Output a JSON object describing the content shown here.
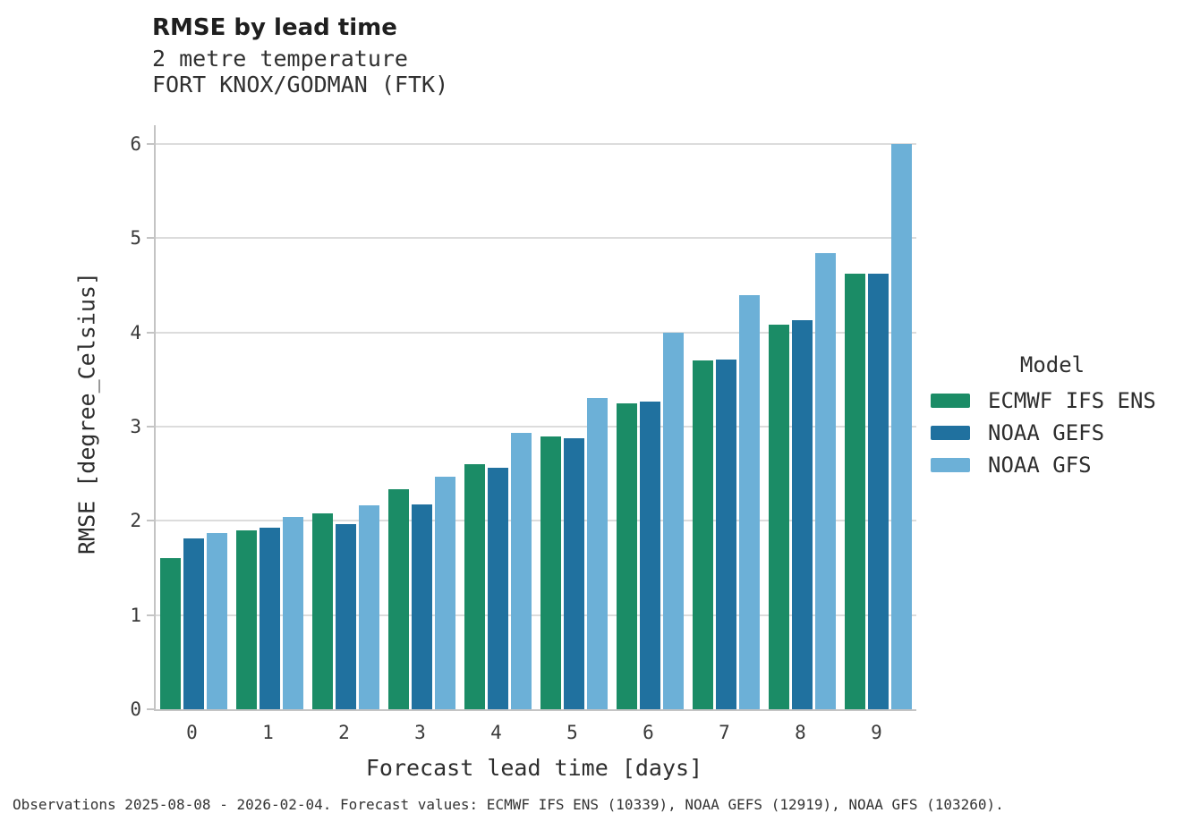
{
  "chart_data": {
    "type": "bar",
    "title": "RMSE by lead time",
    "subtitle": "2 metre temperature",
    "station": "FORT KNOX/GODMAN (FTK)",
    "xlabel": "Forecast lead time [days]",
    "ylabel": "RMSE [degree_Celsius]",
    "categories": [
      "0",
      "1",
      "2",
      "3",
      "4",
      "5",
      "6",
      "7",
      "8",
      "9"
    ],
    "series": [
      {
        "name": "ECMWF IFS ENS",
        "color": "#1b8c66",
        "values": [
          1.6,
          1.9,
          2.08,
          2.34,
          2.6,
          2.9,
          3.25,
          3.7,
          4.08,
          4.62
        ]
      },
      {
        "name": "NOAA GEFS",
        "color": "#20719f",
        "values": [
          1.81,
          1.93,
          1.97,
          2.17,
          2.56,
          2.88,
          3.27,
          3.71,
          4.13,
          4.62
        ]
      },
      {
        "name": "NOAA GFS",
        "color": "#6cb0d7",
        "values": [
          1.87,
          2.04,
          2.16,
          2.47,
          2.93,
          3.3,
          4.0,
          4.4,
          4.84,
          6.0
        ]
      }
    ],
    "ylim": [
      0,
      6
    ],
    "yticks": [
      0,
      1,
      2,
      3,
      4,
      5,
      6
    ],
    "grid": "horizontal",
    "legend_title": "Model",
    "legend_position": "right"
  },
  "footer": {
    "text": "Observations 2025-08-08 - 2026-02-04. Forecast values: ECMWF IFS ENS (10339), NOAA GEFS (12919), NOAA GFS (103260)."
  }
}
